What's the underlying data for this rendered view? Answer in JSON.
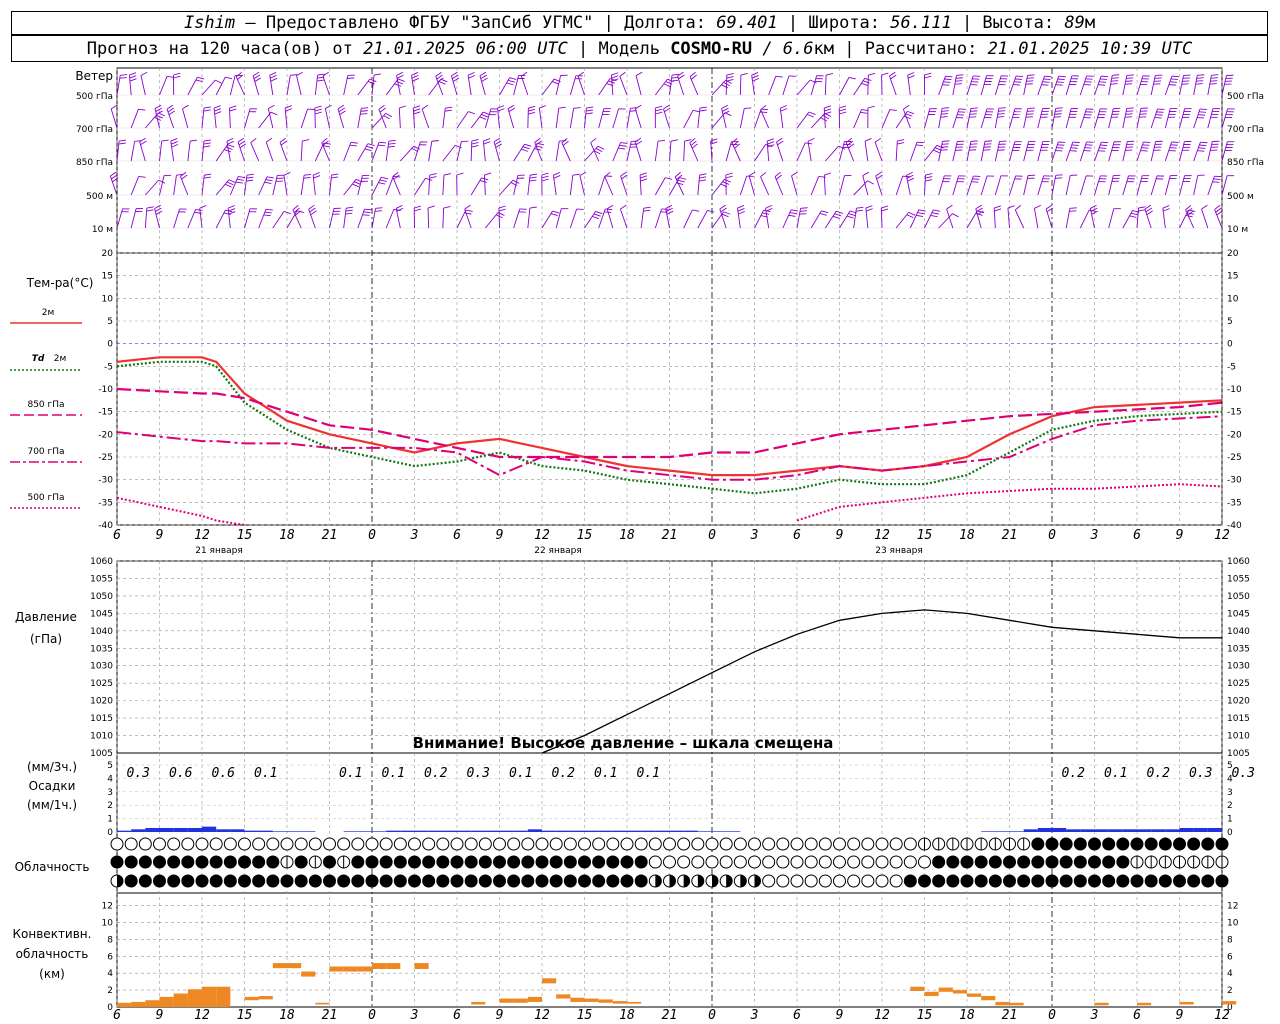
{
  "header": {
    "station": "Ishim",
    "provider": "— Предоставлено ФГБУ \"ЗапСиб УГМС\"",
    "lon_label": "| Долгота:",
    "lon": "69.401",
    "lat_label": "| Широта:",
    "lat": "56.111",
    "alt_label": "| Высота:",
    "alt": "89",
    "alt_unit": "м",
    "forecast_label": "Прогноз на 120 часа(ов) от",
    "forecast_time": "21.01.2025 06:00 UTC",
    "model_label": "| Модель",
    "model": "COSMO-RU",
    "res": "/ 6.6",
    "res_unit": "км",
    "calc_label": "| Рассчитано:",
    "calc_time": "21.01.2025 10:39 UTC"
  },
  "labels": {
    "wind": "Ветер",
    "wind_levels": [
      "500 гПа",
      "700 гПа",
      "850 гПа",
      "500 м",
      "10 м"
    ],
    "temp": "Тем-ра(°C)",
    "t2m": "2м",
    "td": "Td",
    "td2": "2м",
    "t850": "850 гПа",
    "t700": "700 гПа",
    "t500": "500 гПа",
    "pressure1": "Давление",
    "pressure2": "(гПа)",
    "warning": "Внимание! Высокое давление – шкала смещена",
    "precip1": "(мм/3ч.)",
    "precip2": "Осадки",
    "precip3": "(мм/1ч.)",
    "cloud": "Облачность",
    "conv1": "Конвективн.",
    "conv2": "облачность",
    "conv3": "(км)",
    "dates": [
      "21 января",
      "22 января",
      "23 января"
    ]
  },
  "colors": {
    "wind": "#8800cc",
    "t2m": "#ee3333",
    "td": "#117711",
    "levels": "#dd0077",
    "precip": "#2233dd",
    "conv": "#ee8822",
    "grid": "#888888"
  },
  "chart_data": [
    {
      "type": "line",
      "title": "Тем-ра(°C)",
      "x_hours": [
        6,
        9,
        12,
        13,
        15,
        18,
        21,
        24,
        27,
        30,
        33,
        36,
        39,
        42,
        45,
        48,
        51,
        54,
        57,
        60,
        63,
        66,
        69,
        72,
        75,
        78,
        81,
        84
      ],
      "ylim": [
        -40,
        20
      ],
      "series": [
        {
          "name": "2м",
          "values": [
            -4,
            -3,
            -3,
            -4,
            -11,
            -17,
            -20,
            -22,
            -24,
            -22,
            -21,
            -23,
            -25,
            -27,
            -28,
            -29,
            -29,
            -28,
            -27,
            -28,
            -27,
            -25,
            -20,
            -16,
            -14,
            -13.5,
            -13,
            -12.5
          ]
        },
        {
          "name": "Td 2м",
          "values": [
            -5,
            -4,
            -4,
            -5,
            -13,
            -19,
            -23,
            -25,
            -27,
            -26,
            -24,
            -27,
            -28,
            -30,
            -31,
            -32,
            -33,
            -32,
            -30,
            -31,
            -31,
            -29,
            -24,
            -19,
            -17,
            -16,
            -15.5,
            -15
          ]
        },
        {
          "name": "850 гПа",
          "values": [
            -10,
            -10.5,
            -11,
            -11,
            -12,
            -15,
            -18,
            -19,
            -21,
            -23,
            -25,
            -25,
            -25,
            -25,
            -25,
            -24,
            -24,
            -22,
            -20,
            -19,
            -18,
            -17,
            -16,
            -15.5,
            -15,
            -14.5,
            -14,
            -13
          ]
        },
        {
          "name": "700 гПа",
          "values": [
            -19.5,
            -20.5,
            -21.5,
            -21.5,
            -22,
            -22,
            -23,
            -23,
            -23,
            -24,
            -29,
            -25,
            -26,
            -28,
            -29,
            -30,
            -30,
            -29,
            -27,
            -28,
            -27,
            -26,
            -25,
            -21,
            -18,
            -17,
            -16.5,
            -16
          ]
        },
        {
          "name": "500 гПа",
          "values": [
            -34,
            -36,
            -38,
            -39,
            -40,
            null,
            null,
            null,
            null,
            null,
            null,
            null,
            null,
            null,
            null,
            null,
            null,
            -39,
            -36,
            -35,
            -34,
            -33,
            -32.5,
            -32,
            -32,
            -31.5,
            -31,
            -31.5
          ]
        }
      ]
    },
    {
      "type": "line",
      "title": "Давление (гПа)",
      "x_hours": [
        36,
        39,
        42,
        45,
        48,
        51,
        54,
        57,
        60,
        63,
        66,
        69,
        72,
        75,
        78,
        81,
        84
      ],
      "ylim": [
        1005,
        1060
      ],
      "series": [
        {
          "name": "Давление",
          "values": [
            1005,
            1010,
            1016,
            1022,
            1028,
            1034,
            1039,
            1043,
            1045,
            1046,
            1045,
            1043,
            1041,
            1040,
            1039,
            1038,
            1038
          ]
        }
      ]
    },
    {
      "type": "bar",
      "title": "Осадки",
      "ylim": [
        0,
        5
      ],
      "labels_x_hours": [
        7.5,
        10.5,
        13.5,
        16.5,
        22.5,
        25.5,
        28.5,
        31.5,
        34.5,
        37.5,
        40.5,
        43.5,
        73.5,
        76.5,
        79.5,
        82.5,
        85.5
      ],
      "labels": [
        "0.3",
        "0.6",
        "0.6",
        "0.1",
        "0.1",
        "0.1",
        "0.2",
        "0.3",
        "0.1",
        "0.2",
        "0.1",
        "0.1",
        "0.2",
        "0.1",
        "0.2",
        "0.3",
        "0.3"
      ],
      "hourly_x": [
        6,
        7,
        8,
        9,
        10,
        11,
        12,
        13,
        14,
        15,
        16,
        17,
        18,
        19,
        20,
        21,
        22,
        23,
        24,
        25,
        26,
        27,
        28,
        29,
        30,
        31,
        32,
        33,
        34,
        35,
        36,
        37,
        38,
        39,
        40,
        41,
        42,
        43,
        44,
        45,
        46,
        47,
        48,
        49,
        50,
        51,
        52,
        53,
        54,
        55,
        56,
        57,
        58,
        59,
        60,
        61,
        62,
        63,
        64,
        65,
        66,
        67,
        68,
        69,
        70,
        71,
        72,
        73,
        74,
        75,
        76,
        77,
        78,
        79,
        80,
        81,
        82,
        83
      ],
      "hourly_values": [
        0.1,
        0.2,
        0.3,
        0.3,
        0.3,
        0.3,
        0.4,
        0.2,
        0.2,
        0.1,
        0.1,
        0.05,
        0.05,
        0.05,
        0,
        0,
        0.05,
        0.05,
        0.05,
        0.1,
        0.1,
        0.1,
        0.1,
        0.1,
        0.1,
        0.1,
        0.1,
        0.1,
        0.1,
        0.2,
        0.1,
        0.1,
        0.1,
        0.1,
        0.1,
        0.1,
        0.1,
        0.1,
        0.1,
        0.1,
        0.1,
        0.05,
        0.05,
        0.05,
        0,
        0,
        0,
        0,
        0,
        0,
        0,
        0,
        0,
        0,
        0,
        0,
        0,
        0,
        0,
        0,
        0,
        0.05,
        0.05,
        0.05,
        0.2,
        0.3,
        0.3,
        0.2,
        0.2,
        0.2,
        0.2,
        0.2,
        0.2,
        0.2,
        0.2,
        0.3,
        0.3,
        0.3
      ]
    },
    {
      "type": "bar",
      "title": "Конвективн. облачность (км)",
      "ylim": [
        0,
        13
      ],
      "segments": [
        {
          "x": 6,
          "lo": 0,
          "hi": 0.5
        },
        {
          "x": 7,
          "lo": 0,
          "hi": 0.6
        },
        {
          "x": 8,
          "lo": 0,
          "hi": 0.8
        },
        {
          "x": 9,
          "lo": 0,
          "hi": 1.2
        },
        {
          "x": 10,
          "lo": 0,
          "hi": 1.6
        },
        {
          "x": 11,
          "lo": 0,
          "hi": 2.1
        },
        {
          "x": 12,
          "lo": 0,
          "hi": 2.4
        },
        {
          "x": 13,
          "lo": 0,
          "hi": 2.4
        },
        {
          "x": 15,
          "lo": 0.8,
          "hi": 1.2
        },
        {
          "x": 16,
          "lo": 0.9,
          "hi": 1.3
        },
        {
          "x": 17,
          "lo": 4.6,
          "hi": 5.2
        },
        {
          "x": 18,
          "lo": 4.6,
          "hi": 5.2
        },
        {
          "x": 19,
          "lo": 3.6,
          "hi": 4.2
        },
        {
          "x": 20,
          "lo": 0.3,
          "hi": 0.5
        },
        {
          "x": 21,
          "lo": 4.2,
          "hi": 4.8
        },
        {
          "x": 22,
          "lo": 4.2,
          "hi": 4.8
        },
        {
          "x": 23,
          "lo": 4.2,
          "hi": 4.8
        },
        {
          "x": 24,
          "lo": 4.5,
          "hi": 5.2
        },
        {
          "x": 25,
          "lo": 4.5,
          "hi": 5.2
        },
        {
          "x": 27,
          "lo": 4.5,
          "hi": 5.2
        },
        {
          "x": 31,
          "lo": 0.3,
          "hi": 0.6
        },
        {
          "x": 33,
          "lo": 0.5,
          "hi": 1.0
        },
        {
          "x": 34,
          "lo": 0.5,
          "hi": 1.0
        },
        {
          "x": 35,
          "lo": 0.6,
          "hi": 1.2
        },
        {
          "x": 36,
          "lo": 2.8,
          "hi": 3.4
        },
        {
          "x": 37,
          "lo": 1.0,
          "hi": 1.5
        },
        {
          "x": 38,
          "lo": 0.6,
          "hi": 1.1
        },
        {
          "x": 39,
          "lo": 0.6,
          "hi": 1.0
        },
        {
          "x": 40,
          "lo": 0.5,
          "hi": 0.9
        },
        {
          "x": 41,
          "lo": 0.4,
          "hi": 0.7
        },
        {
          "x": 42,
          "lo": 0.4,
          "hi": 0.6
        },
        {
          "x": 62,
          "lo": 1.9,
          "hi": 2.4
        },
        {
          "x": 63,
          "lo": 1.3,
          "hi": 1.8
        },
        {
          "x": 64,
          "lo": 1.8,
          "hi": 2.3
        },
        {
          "x": 65,
          "lo": 1.6,
          "hi": 2.0
        },
        {
          "x": 66,
          "lo": 1.2,
          "hi": 1.6
        },
        {
          "x": 67,
          "lo": 0.8,
          "hi": 1.3
        },
        {
          "x": 68,
          "lo": 0.2,
          "hi": 0.6
        },
        {
          "x": 69,
          "lo": 0.2,
          "hi": 0.5
        },
        {
          "x": 75,
          "lo": 0.2,
          "hi": 0.5
        },
        {
          "x": 78,
          "lo": 0.2,
          "hi": 0.5
        },
        {
          "x": 81,
          "lo": 0.3,
          "hi": 0.6
        },
        {
          "x": 84,
          "lo": 0.3,
          "hi": 0.7
        }
      ]
    }
  ]
}
